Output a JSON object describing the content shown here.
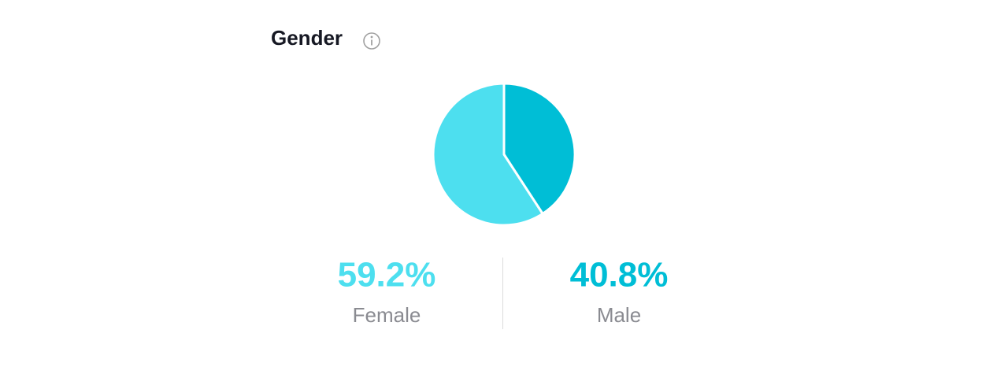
{
  "chart_data": {
    "type": "pie",
    "title": "Gender",
    "categories": [
      "Female",
      "Male"
    ],
    "values": [
      59.2,
      40.8
    ],
    "value_labels": [
      "59.2%",
      "40.8%"
    ],
    "colors": [
      "#4ddfef",
      "#00bed6"
    ]
  }
}
